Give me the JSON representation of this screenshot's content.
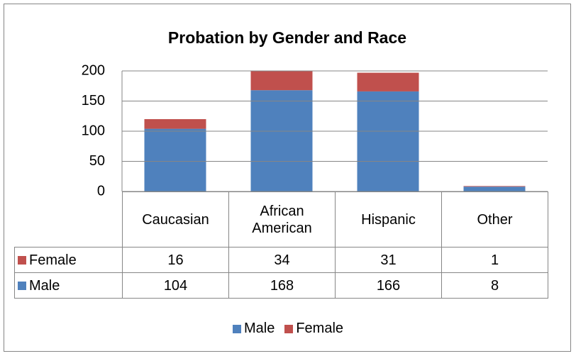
{
  "chart_data": {
    "type": "stacked_bar",
    "title": "Probation by Gender and Race",
    "categories": [
      "Caucasian",
      "African American",
      "Hispanic",
      "Other"
    ],
    "series": [
      {
        "name": "Male",
        "color": "#4f81bd",
        "values": [
          104,
          168,
          166,
          8
        ]
      },
      {
        "name": "Female",
        "color": "#c0504d",
        "values": [
          16,
          34,
          31,
          1
        ]
      }
    ],
    "ylim": [
      0,
      200
    ],
    "yticks": [
      0,
      50,
      100,
      150,
      200
    ],
    "grid": true,
    "legend": "bottom"
  }
}
